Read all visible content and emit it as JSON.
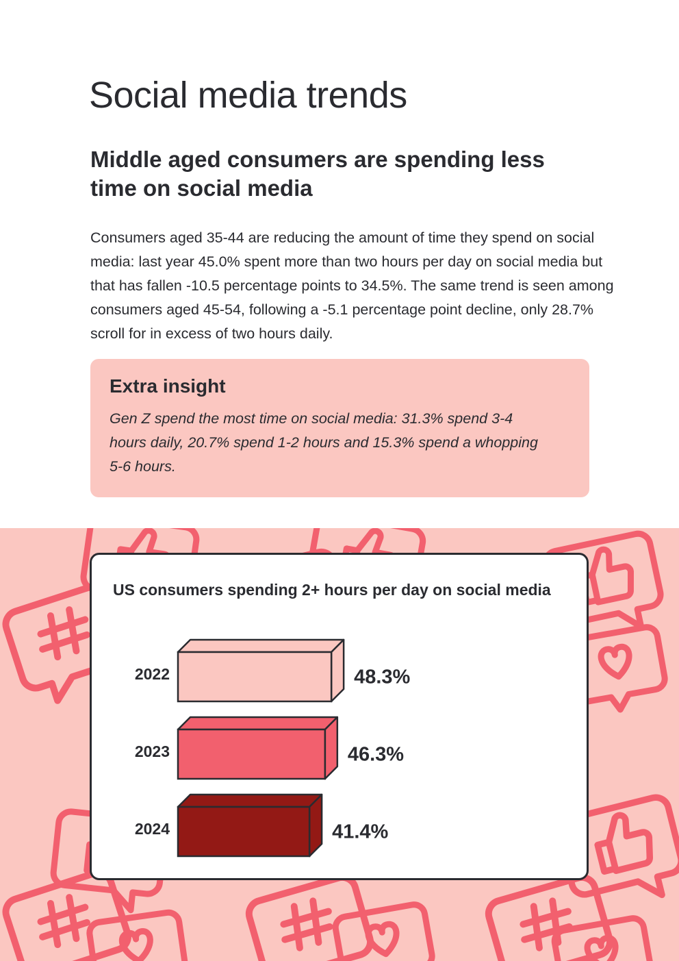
{
  "page": {
    "title": "Social media trends",
    "subtitle": "Middle aged consumers are spending less time on social media",
    "body": "Consumers aged 35-44 are reducing the amount of time they spend on social media: last year 45.0% spent more than two hours per day on social media but that has fallen -10.5 percentage points to 34.5%. The same trend is seen among consumers aged 45-54, following a -5.1 percentage point decline, only 28.7% scroll for in excess of two hours daily."
  },
  "insight": {
    "title": "Extra insight",
    "text": "Gen Z spend the most time on social media: 31.3% spend 3-4 hours daily, 20.7% spend 1-2 hours and 15.3% spend a whopping 5-6 hours."
  },
  "background_pattern": {
    "icons": [
      "hashtag-bubble-icon",
      "thumbs-up-bubble-icon",
      "heart-bubble-icon"
    ],
    "color": "#f2606e"
  },
  "colors": {
    "ink": "#2a2b30",
    "band": "#fbc7c1",
    "bar_2022": "#fbc7c1",
    "bar_2023": "#f2606e",
    "bar_2024": "#931915"
  },
  "chart_data": {
    "type": "bar",
    "orientation": "horizontal",
    "style": "3d",
    "title": "US consumers spending 2+ hours per day on social media",
    "categories": [
      "2022",
      "2023",
      "2024"
    ],
    "values": [
      48.3,
      46.3,
      41.4
    ],
    "value_labels": [
      "48.3%",
      "46.3%",
      "41.4%"
    ],
    "bar_colors": [
      "#fbc7c1",
      "#f2606e",
      "#931915"
    ],
    "grid": false,
    "legend": "none"
  }
}
